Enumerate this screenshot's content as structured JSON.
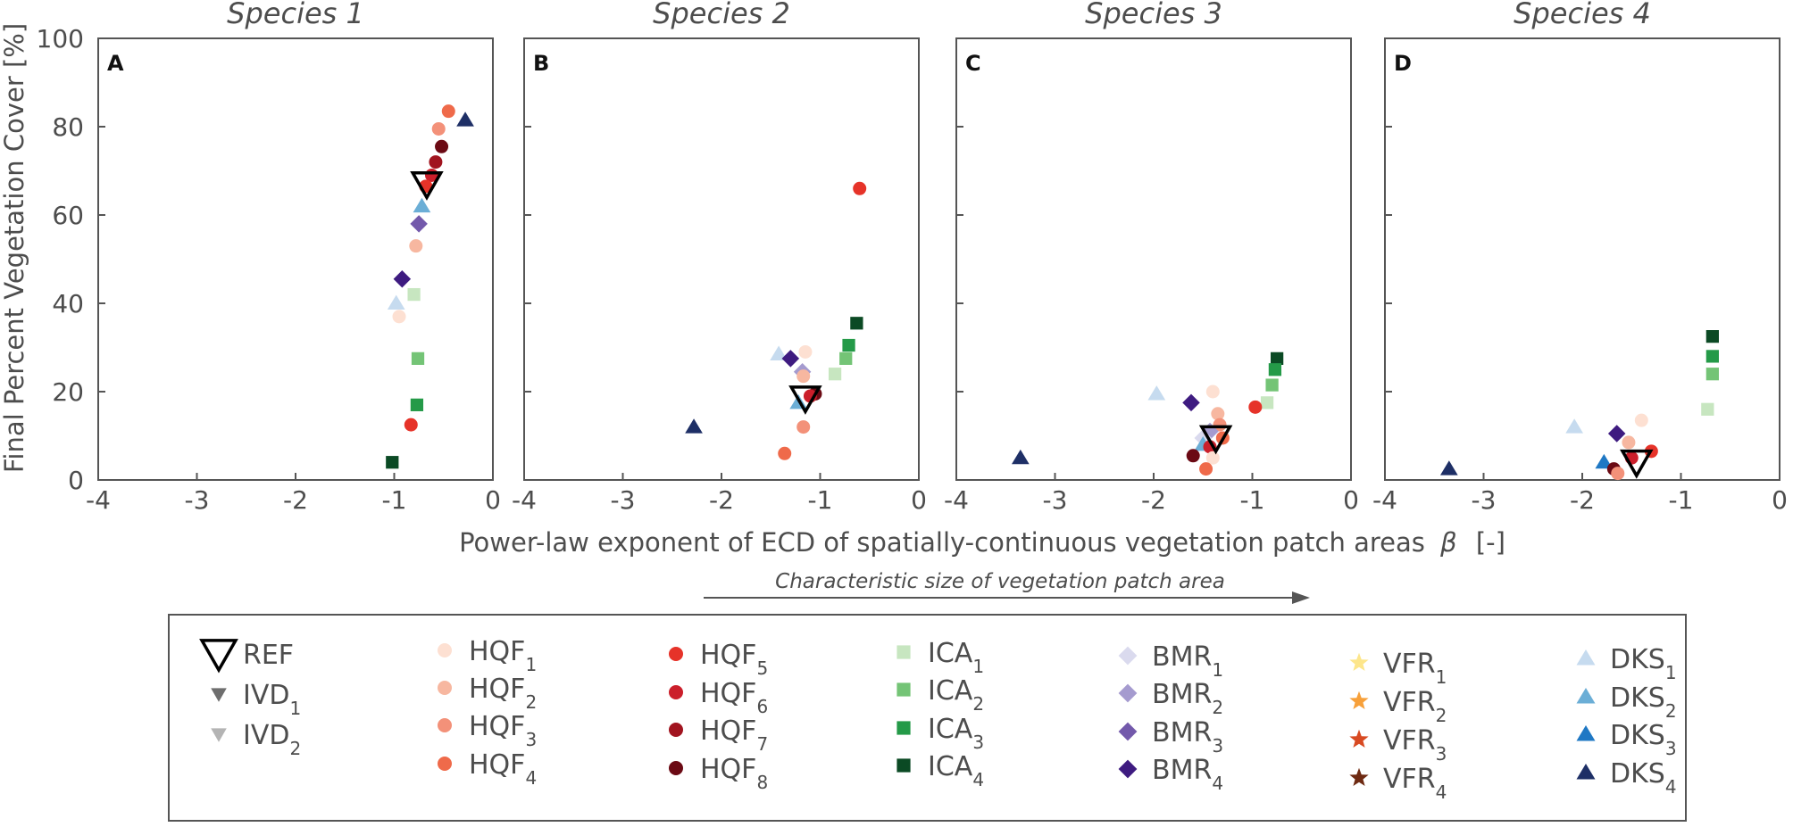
{
  "chart_data": {
    "type": "scatter",
    "ylabel": "Final Percent Vegetation Cover [%]",
    "xlabel": "Power-law exponent of ECD of spatially-continuous vegetation patch areas",
    "xlabel_symbol": "β",
    "xlabel_unit": "[-]",
    "annotation": "Characteristic size of vegetation patch area",
    "xlim": [
      -4,
      0
    ],
    "ylim": [
      0,
      100
    ],
    "x_ticks": [
      -4,
      -3,
      -2,
      -1,
      0
    ],
    "y_ticks": [
      0,
      20,
      40,
      60,
      80,
      100
    ],
    "grid": false,
    "legend_position": "bottom",
    "series": [
      {
        "key": "REF",
        "name": "REF",
        "sub": "",
        "shape": "tri-down-open",
        "color": "#000000"
      },
      {
        "key": "IVD1",
        "name": "IVD",
        "sub": "1",
        "shape": "tri-down",
        "color": "#6e6e6e"
      },
      {
        "key": "IVD2",
        "name": "IVD",
        "sub": "2",
        "shape": "tri-down",
        "color": "#b4b4b4"
      },
      {
        "key": "HQF1",
        "name": "HQF",
        "sub": "1",
        "shape": "circle",
        "color": "#fde0d2"
      },
      {
        "key": "HQF2",
        "name": "HQF",
        "sub": "2",
        "shape": "circle",
        "color": "#f7b7a0"
      },
      {
        "key": "HQF3",
        "name": "HQF",
        "sub": "3",
        "shape": "circle",
        "color": "#f39179"
      },
      {
        "key": "HQF4",
        "name": "HQF",
        "sub": "4",
        "shape": "circle",
        "color": "#ef6a4a"
      },
      {
        "key": "HQF5",
        "name": "HQF",
        "sub": "5",
        "shape": "circle",
        "color": "#e63329"
      },
      {
        "key": "HQF6",
        "name": "HQF",
        "sub": "6",
        "shape": "circle",
        "color": "#cb1f2b"
      },
      {
        "key": "HQF7",
        "name": "HQF",
        "sub": "7",
        "shape": "circle",
        "color": "#a1141f"
      },
      {
        "key": "HQF8",
        "name": "HQF",
        "sub": "8",
        "shape": "circle",
        "color": "#6b0a14"
      },
      {
        "key": "ICA1",
        "name": "ICA",
        "sub": "1",
        "shape": "square",
        "color": "#c7e6c0"
      },
      {
        "key": "ICA2",
        "name": "ICA",
        "sub": "2",
        "shape": "square",
        "color": "#74c476"
      },
      {
        "key": "ICA3",
        "name": "ICA",
        "sub": "3",
        "shape": "square",
        "color": "#249a48"
      },
      {
        "key": "ICA4",
        "name": "ICA",
        "sub": "4",
        "shape": "square",
        "color": "#0b4a24"
      },
      {
        "key": "BMR1",
        "name": "BMR",
        "sub": "1",
        "shape": "diamond",
        "color": "#dadaee"
      },
      {
        "key": "BMR2",
        "name": "BMR",
        "sub": "2",
        "shape": "diamond",
        "color": "#a59bcf"
      },
      {
        "key": "BMR3",
        "name": "BMR",
        "sub": "3",
        "shape": "diamond",
        "color": "#7359ab"
      },
      {
        "key": "BMR4",
        "name": "BMR",
        "sub": "4",
        "shape": "diamond",
        "color": "#3e1b80"
      },
      {
        "key": "VFR1",
        "name": "VFR",
        "sub": "1",
        "shape": "star",
        "color": "#fde68b"
      },
      {
        "key": "VFR2",
        "name": "VFR",
        "sub": "2",
        "shape": "star",
        "color": "#f7a03a"
      },
      {
        "key": "VFR3",
        "name": "VFR",
        "sub": "3",
        "shape": "star",
        "color": "#d84a22"
      },
      {
        "key": "VFR4",
        "name": "VFR",
        "sub": "4",
        "shape": "star",
        "color": "#6e2a12"
      },
      {
        "key": "DKS1",
        "name": "DKS",
        "sub": "1",
        "shape": "triangle",
        "color": "#c6dbef"
      },
      {
        "key": "DKS2",
        "name": "DKS",
        "sub": "2",
        "shape": "triangle",
        "color": "#6baed6"
      },
      {
        "key": "DKS3",
        "name": "DKS",
        "sub": "3",
        "shape": "triangle",
        "color": "#1f78c4"
      },
      {
        "key": "DKS4",
        "name": "DKS",
        "sub": "4",
        "shape": "triangle",
        "color": "#1e2f66"
      }
    ],
    "panels": [
      {
        "letter": "A",
        "title": "Species 1",
        "points": [
          {
            "s": "DKS4",
            "x": -0.28,
            "y": 81.5
          },
          {
            "s": "HQF4",
            "x": -0.45,
            "y": 83.5
          },
          {
            "s": "HQF3",
            "x": -0.55,
            "y": 79.5
          },
          {
            "s": "HQF8",
            "x": -0.52,
            "y": 75.5
          },
          {
            "s": "HQF7",
            "x": -0.58,
            "y": 72.0
          },
          {
            "s": "HQF6",
            "x": -0.62,
            "y": 69.0
          },
          {
            "s": "HQF5",
            "x": -0.68,
            "y": 66.5
          },
          {
            "s": "DKS2",
            "x": -0.72,
            "y": 62.0
          },
          {
            "s": "BMR3",
            "x": -0.75,
            "y": 58.0
          },
          {
            "s": "HQF2",
            "x": -0.78,
            "y": 53.0
          },
          {
            "s": "BMR4",
            "x": -0.92,
            "y": 45.5
          },
          {
            "s": "ICA1",
            "x": -0.8,
            "y": 42.0
          },
          {
            "s": "DKS1",
            "x": -0.98,
            "y": 40.0
          },
          {
            "s": "HQF1",
            "x": -0.95,
            "y": 37.0
          },
          {
            "s": "ICA2",
            "x": -0.76,
            "y": 27.5
          },
          {
            "s": "ICA3",
            "x": -0.77,
            "y": 17.0
          },
          {
            "s": "HQF5",
            "x": -0.83,
            "y": 12.5
          },
          {
            "s": "ICA4",
            "x": -1.02,
            "y": 4.0
          },
          {
            "s": "REF",
            "x": -0.67,
            "y": 67.0
          }
        ]
      },
      {
        "letter": "B",
        "title": "Species 2",
        "points": [
          {
            "s": "HQF5",
            "x": -0.6,
            "y": 66.0
          },
          {
            "s": "ICA4",
            "x": -0.63,
            "y": 35.5
          },
          {
            "s": "ICA3",
            "x": -0.71,
            "y": 30.5
          },
          {
            "s": "ICA2",
            "x": -0.74,
            "y": 27.5
          },
          {
            "s": "ICA1",
            "x": -0.85,
            "y": 24.0
          },
          {
            "s": "HQF1",
            "x": -1.15,
            "y": 29.0
          },
          {
            "s": "DKS1",
            "x": -1.42,
            "y": 28.5
          },
          {
            "s": "BMR4",
            "x": -1.3,
            "y": 27.5
          },
          {
            "s": "BMR2",
            "x": -1.18,
            "y": 24.5
          },
          {
            "s": "HQF2",
            "x": -1.17,
            "y": 23.5
          },
          {
            "s": "HQF8",
            "x": -1.05,
            "y": 19.5
          },
          {
            "s": "HQF6",
            "x": -1.1,
            "y": 19.0
          },
          {
            "s": "DKS2",
            "x": -1.22,
            "y": 17.5
          },
          {
            "s": "HQF3",
            "x": -1.17,
            "y": 12.0
          },
          {
            "s": "HQF4",
            "x": -1.36,
            "y": 6.0
          },
          {
            "s": "DKS4",
            "x": -2.28,
            "y": 12.0
          },
          {
            "s": "REF",
            "x": -1.15,
            "y": 18.5
          }
        ]
      },
      {
        "letter": "C",
        "title": "Species 3",
        "points": [
          {
            "s": "ICA4",
            "x": -0.75,
            "y": 27.5
          },
          {
            "s": "ICA3",
            "x": -0.77,
            "y": 25.0
          },
          {
            "s": "ICA2",
            "x": -0.8,
            "y": 21.5
          },
          {
            "s": "ICA1",
            "x": -0.85,
            "y": 17.5
          },
          {
            "s": "HQF5",
            "x": -0.97,
            "y": 16.5
          },
          {
            "s": "HQF1",
            "x": -1.4,
            "y": 20.0
          },
          {
            "s": "DKS1",
            "x": -1.97,
            "y": 19.5
          },
          {
            "s": "BMR4",
            "x": -1.62,
            "y": 17.5
          },
          {
            "s": "HQF2",
            "x": -1.35,
            "y": 15.0
          },
          {
            "s": "HQF3",
            "x": -1.33,
            "y": 12.5
          },
          {
            "s": "BMR2",
            "x": -1.43,
            "y": 11.0
          },
          {
            "s": "BMR1",
            "x": -1.5,
            "y": 9.5
          },
          {
            "s": "HQF4",
            "x": -1.3,
            "y": 9.5
          },
          {
            "s": "DKS2",
            "x": -1.5,
            "y": 8.0
          },
          {
            "s": "HQF6",
            "x": -1.43,
            "y": 7.5
          },
          {
            "s": "HQF8",
            "x": -1.6,
            "y": 5.5
          },
          {
            "s": "HQF1",
            "x": -1.4,
            "y": 5.0
          },
          {
            "s": "HQF4",
            "x": -1.47,
            "y": 2.5
          },
          {
            "s": "DKS4",
            "x": -3.35,
            "y": 5.0
          },
          {
            "s": "REF",
            "x": -1.37,
            "y": 9.5
          }
        ]
      },
      {
        "letter": "D",
        "title": "Species 4",
        "points": [
          {
            "s": "ICA4",
            "x": -0.68,
            "y": 32.5
          },
          {
            "s": "ICA3",
            "x": -0.68,
            "y": 28.0
          },
          {
            "s": "ICA2",
            "x": -0.68,
            "y": 24.0
          },
          {
            "s": "ICA1",
            "x": -0.73,
            "y": 16.0
          },
          {
            "s": "HQF1",
            "x": -1.4,
            "y": 13.5
          },
          {
            "s": "DKS1",
            "x": -2.08,
            "y": 12.0
          },
          {
            "s": "BMR4",
            "x": -1.65,
            "y": 10.5
          },
          {
            "s": "HQF2",
            "x": -1.53,
            "y": 8.5
          },
          {
            "s": "HQF5",
            "x": -1.3,
            "y": 6.5
          },
          {
            "s": "HQF6",
            "x": -1.5,
            "y": 5.0
          },
          {
            "s": "DKS3",
            "x": -1.78,
            "y": 4.0
          },
          {
            "s": "HQF8",
            "x": -1.68,
            "y": 2.5
          },
          {
            "s": "HQF3",
            "x": -1.64,
            "y": 1.5
          },
          {
            "s": "DKS4",
            "x": -3.35,
            "y": 2.5
          },
          {
            "s": "REF",
            "x": -1.45,
            "y": 4.0
          }
        ]
      }
    ]
  }
}
